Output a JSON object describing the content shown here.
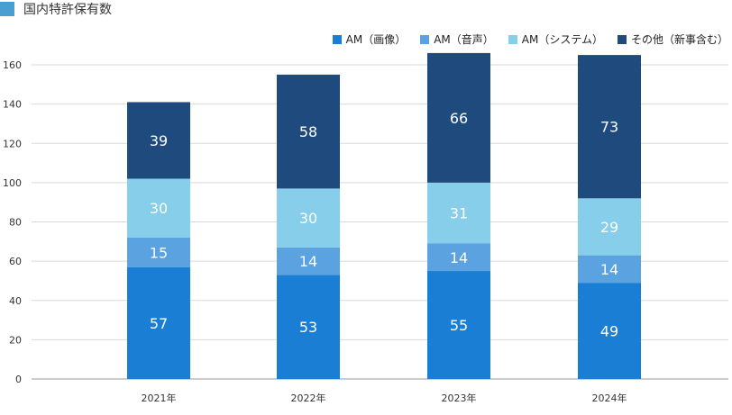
{
  "header": {
    "title": "国内特許保有数",
    "square_color": "#4a9fd0"
  },
  "chart_data": {
    "type": "bar",
    "stacked": true,
    "title": "国内特許保有数",
    "xlabel": "",
    "ylabel": "",
    "ylim": [
      0,
      160
    ],
    "yticks": [
      0,
      20,
      40,
      60,
      80,
      100,
      120,
      140,
      160
    ],
    "grid": true,
    "legend_position": "top-right",
    "categories": [
      "2021年",
      "2022年",
      "2023年",
      "2024年"
    ],
    "series": [
      {
        "name": "AM（画像）",
        "values": [
          57,
          53,
          55,
          49
        ],
        "color": "#1a7fd4",
        "label_color": "#ffffff"
      },
      {
        "name": "AM（音声）",
        "values": [
          15,
          14,
          14,
          14
        ],
        "color": "#5aa3e0",
        "label_color": "#ffffff"
      },
      {
        "name": "AM（システム）",
        "values": [
          30,
          30,
          31,
          29
        ],
        "color": "#87ceeb",
        "label_color": "#ffffff"
      },
      {
        "name": "その他（新事含む）",
        "values": [
          39,
          58,
          66,
          73
        ],
        "color": "#1e4a7e",
        "label_color": "#ffffff"
      }
    ]
  }
}
